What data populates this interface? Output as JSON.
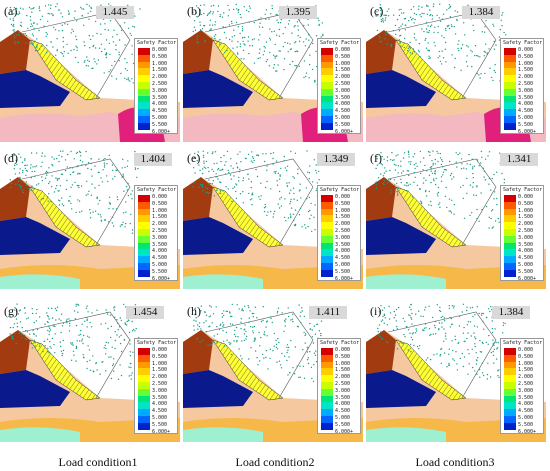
{
  "panels": [
    {
      "label": "(a)",
      "factor": "1.445"
    },
    {
      "label": "(b)",
      "factor": "1.395"
    },
    {
      "label": "(c)",
      "factor": "1.384"
    },
    {
      "label": "(d)",
      "factor": "1.404"
    },
    {
      "label": "(e)",
      "factor": "1.349"
    },
    {
      "label": "(f)",
      "factor": "1.341"
    },
    {
      "label": "(g)",
      "factor": "1.454"
    },
    {
      "label": "(h)",
      "factor": "1.411"
    },
    {
      "label": "(i)",
      "factor": "1.384"
    }
  ],
  "legend": {
    "title": "Safety Factor",
    "ticks": [
      "0.000",
      "0.500",
      "1.000",
      "1.500",
      "2.000",
      "2.500",
      "3.000",
      "3.500",
      "4.000",
      "4.500",
      "5.000",
      "5.500",
      "6.000+"
    ],
    "colors": [
      "#d40000",
      "#ff5a00",
      "#ff9900",
      "#ffcc00",
      "#ffff00",
      "#c8ff00",
      "#66ff33",
      "#00e676",
      "#00e5c8",
      "#00aaff",
      "#0066ff",
      "#0022cc"
    ]
  },
  "captions": [
    "Load condition1",
    "Load condition2",
    "Load condition3"
  ],
  "colors": {
    "brown": "#a33b10",
    "navy": "#0a1a8c",
    "hatch": "#ffff33",
    "peach": "#f5c8a0",
    "orange": "#f7b84a",
    "pink": "#f4b8c0",
    "magenta": "#e0207a",
    "mint": "#9ff0d0",
    "dots": "#1a9e8a"
  }
}
